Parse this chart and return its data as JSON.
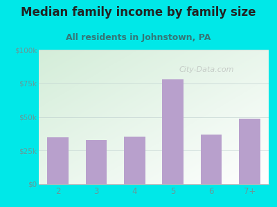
{
  "title": "Median family income by family size",
  "subtitle": "All residents in Johnstown, PA",
  "categories": [
    "2",
    "3",
    "4",
    "5",
    "6",
    "7+"
  ],
  "values": [
    35000,
    33000,
    35500,
    78000,
    37000,
    48500
  ],
  "bar_color": "#b8a0cc",
  "background_color": "#00e8e8",
  "title_color": "#222222",
  "subtitle_color": "#337777",
  "ytick_color": "#669999",
  "xtick_color": "#669999",
  "ylim": [
    0,
    100000
  ],
  "yticks": [
    0,
    25000,
    50000,
    75000,
    100000
  ],
  "ytick_labels": [
    "$0",
    "$25k",
    "$50k",
    "$75k",
    "$100k"
  ],
  "watermark": "City-Data.com",
  "title_fontsize": 12,
  "subtitle_fontsize": 9
}
